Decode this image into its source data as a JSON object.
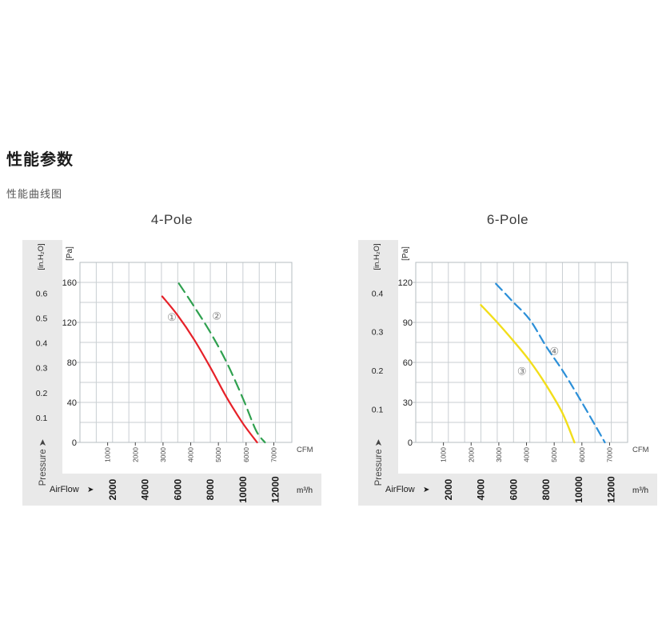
{
  "page": {
    "heading": "性能参数",
    "subheading": "性能曲线图"
  },
  "colors": {
    "band": "#e9e9e9",
    "grid": "#c9ced2",
    "border": "#b6bcc0",
    "text": "#222222",
    "muted": "#444444",
    "series_label": "#7a7a7a"
  },
  "chart_data": [
    {
      "type": "line",
      "title": "4-Pole",
      "pa_axis": {
        "unit_label": "[Pa]",
        "ticks": [
          0,
          40,
          80,
          120,
          160
        ],
        "max": 180,
        "minor_step": 20
      },
      "inh2o_axis": {
        "unit_label": "[in.H₂O]",
        "ticks": [
          "0.1",
          "0.2",
          "0.3",
          "0.4",
          "0.5",
          "0.6"
        ],
        "pa_positions": [
          24.9,
          49.8,
          74.7,
          99.6,
          124.5,
          149.4
        ]
      },
      "pressure_label": "Pressure",
      "arrow_glyph": "➤",
      "cfm_axis": {
        "label": "CFM",
        "ticks": [
          1000,
          2000,
          3000,
          4000,
          5000,
          6000,
          7000
        ],
        "m3h_per_cfm": 1.699
      },
      "airflow_axis": {
        "label": "AirFlow",
        "unit": "m³/h",
        "ticks": [
          2000,
          4000,
          6000,
          8000,
          10000,
          12000
        ],
        "max": 13000
      },
      "series": [
        {
          "name": "①",
          "color": "#e62129",
          "dash": "",
          "width": 2.2,
          "label_at": [
            5640,
            125
          ],
          "points": [
            [
              5050,
              146
            ],
            [
              6000,
              127
            ],
            [
              7000,
              103
            ],
            [
              8000,
              75
            ],
            [
              9000,
              45
            ],
            [
              10000,
              19
            ],
            [
              10870,
              0
            ]
          ]
        },
        {
          "name": "②",
          "color": "#2fa04f",
          "dash": "13 7",
          "width": 2.2,
          "label_at": [
            8390,
            126
          ],
          "points": [
            [
              6070,
              159
            ],
            [
              7000,
              136
            ],
            [
              8000,
              110
            ],
            [
              9000,
              80
            ],
            [
              10000,
              44
            ],
            [
              10800,
              12
            ],
            [
              11350,
              0
            ]
          ]
        }
      ]
    },
    {
      "type": "line",
      "title": "6-Pole",
      "pa_axis": {
        "unit_label": "[Pa]",
        "ticks": [
          0,
          30,
          60,
          90,
          120
        ],
        "max": 135,
        "minor_step": 15
      },
      "inh2o_axis": {
        "unit_label": "[in.H₂O]",
        "ticks": [
          "0.1",
          "0.2",
          "0.3",
          "0.4"
        ],
        "pa_positions": [
          25,
          54,
          83,
          112
        ]
      },
      "pressure_label": "Pressure",
      "arrow_glyph": "➤",
      "cfm_axis": {
        "label": "CFM",
        "ticks": [
          1000,
          2000,
          3000,
          4000,
          5000,
          6000,
          7000
        ],
        "m3h_per_cfm": 1.699
      },
      "airflow_axis": {
        "label": "AirFlow",
        "unit": "m³/h",
        "ticks": [
          2000,
          4000,
          6000,
          8000,
          10000,
          12000
        ],
        "max": 13000
      },
      "series": [
        {
          "name": "③",
          "color": "#f2de1b",
          "dash": "",
          "width": 2.4,
          "label_at": [
            6510,
            53
          ],
          "points": [
            [
              4000,
              103
            ],
            [
              5000,
              90
            ],
            [
              6000,
              76
            ],
            [
              7000,
              61
            ],
            [
              8000,
              43
            ],
            [
              9000,
              22
            ],
            [
              9740,
              0
            ]
          ]
        },
        {
          "name": "④",
          "color": "#2b8fd8",
          "dash": "11 6",
          "width": 2.2,
          "label_at": [
            8500,
            68
          ],
          "points": [
            [
              4920,
              119
            ],
            [
              6000,
              105
            ],
            [
              7000,
              92
            ],
            [
              8000,
              72
            ],
            [
              9000,
              54
            ],
            [
              10000,
              34
            ],
            [
              11000,
              13
            ],
            [
              11600,
              0
            ]
          ]
        }
      ]
    }
  ]
}
